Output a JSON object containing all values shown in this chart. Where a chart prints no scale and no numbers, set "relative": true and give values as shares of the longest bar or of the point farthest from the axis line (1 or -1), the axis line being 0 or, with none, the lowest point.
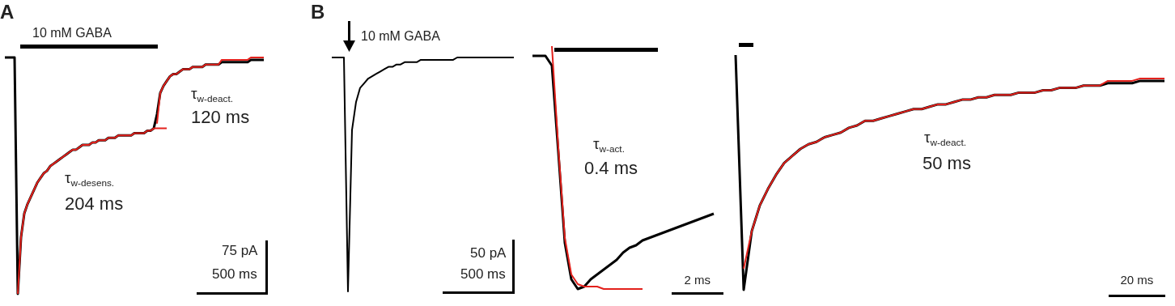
{
  "chart_data": [
    {
      "type": "line",
      "title": "A",
      "relative": true,
      "marker": "none",
      "tick_labels": false,
      "annotations": [
        "10 mM GABA",
        "τ$_{w-deact.}$",
        "120 ms",
        "τ$_{w-desens.}$",
        "204 ms",
        "75 pA",
        "500 ms"
      ],
      "categories": [
        null,
        null,
        null,
        null,
        null,
        null,
        null,
        null,
        null,
        null,
        null,
        null,
        null,
        null,
        null,
        null,
        null,
        null,
        null,
        null,
        null,
        null,
        null,
        null,
        null,
        null,
        null,
        null,
        null,
        null,
        null,
        null,
        null,
        null,
        null,
        null,
        null,
        null,
        null,
        null,
        null,
        null,
        null,
        null,
        null,
        null,
        null,
        null,
        null,
        null,
        null,
        null,
        null,
        null,
        null,
        null,
        null,
        null,
        null,
        null,
        null,
        null,
        null,
        null,
        null,
        null,
        null,
        null,
        null,
        null,
        null,
        null,
        null,
        null,
        null,
        null,
        null,
        null,
        null,
        null,
        null
      ],
      "series": [
        {
          "color": "#000000",
          "values": [
            1,
            1,
            1,
            1,
            0,
            0.24,
            0.34,
            0.38,
            0.41,
            0.44,
            0.47,
            0.49,
            0.51,
            0.52,
            0.54,
            0.55,
            0.56,
            0.57,
            0.58,
            0.59,
            0.6,
            0.61,
            0.61,
            0.62,
            0.63,
            0.63,
            0.63,
            0.64,
            0.64,
            0.65,
            0.65,
            0.65,
            0.66,
            0.66,
            0.66,
            0.67,
            0.67,
            0.67,
            0.67,
            0.67,
            0.68,
            0.68,
            0.68,
            0.68,
            0.69,
            0.69,
            0.7,
            0.76,
            0.85,
            0.88,
            0.9,
            0.92,
            0.93,
            0.93,
            0.94,
            0.95,
            0.95,
            0.95,
            0.96,
            0.96,
            0.96,
            0.96,
            0.97,
            0.97,
            0.97,
            0.97,
            0.97,
            0.98,
            0.98,
            0.98,
            0.98,
            0.98,
            0.98,
            0.98,
            0.98,
            0.98,
            0.99,
            0.99,
            0.99,
            0.99,
            0.99
          ]
        },
        {
          "color": "#e3211c",
          "values": [
            null,
            null,
            null,
            null,
            0,
            0.24,
            0.34,
            0.38,
            0.41,
            0.44,
            0.47,
            0.49,
            0.51,
            0.52,
            0.54,
            0.55,
            0.56,
            0.57,
            0.58,
            0.59,
            0.6,
            0.61,
            0.61,
            0.62,
            0.63,
            0.63,
            0.63,
            0.64,
            0.64,
            0.65,
            0.65,
            0.65,
            0.66,
            0.66,
            0.66,
            0.67,
            0.67,
            0.67,
            0.67,
            0.67,
            0.68,
            0.68,
            0.68,
            0.68,
            0.69,
            0.69,
            0.7,
            0.7,
            0.7,
            0.7,
            0.7,
            null,
            null,
            null,
            null,
            null,
            null,
            null,
            null,
            null,
            null,
            null,
            null,
            null,
            null,
            null,
            null,
            null,
            null,
            null,
            null,
            null,
            null,
            null,
            null,
            null,
            null,
            null,
            null,
            null,
            null
          ]
        },
        {
          "color": "#e3211c",
          "values": [
            null,
            null,
            null,
            null,
            null,
            null,
            null,
            null,
            null,
            null,
            null,
            null,
            null,
            null,
            null,
            null,
            null,
            null,
            null,
            null,
            null,
            null,
            null,
            null,
            null,
            null,
            null,
            null,
            null,
            null,
            null,
            null,
            null,
            null,
            null,
            null,
            null,
            null,
            null,
            null,
            null,
            null,
            null,
            null,
            null,
            null,
            null,
            0.72,
            0.85,
            0.88,
            0.9,
            0.92,
            0.93,
            0.93,
            0.94,
            0.95,
            0.95,
            0.95,
            0.96,
            0.96,
            0.96,
            0.96,
            0.97,
            0.97,
            0.97,
            0.97,
            0.97,
            0.99,
            0.99,
            0.99,
            0.99,
            0.99,
            0.99,
            0.99,
            0.99,
            0.99,
            1,
            1,
            1,
            1,
            1
          ]
        }
      ]
    },
    {
      "type": "line",
      "title": "B",
      "relative": true,
      "marker": "none",
      "tick_labels": false,
      "annotations": [
        "10 mM GABA",
        "50 pA",
        "500 ms"
      ],
      "categories": [
        null,
        null,
        null,
        null,
        null,
        null,
        null,
        null,
        null,
        null,
        null,
        null,
        null,
        null,
        null,
        null,
        null,
        null,
        null,
        null,
        null,
        null,
        null,
        null,
        null,
        null,
        null,
        null,
        null,
        null,
        null,
        null,
        null,
        null,
        null,
        null,
        null,
        null,
        null,
        null,
        null,
        null,
        null,
        null,
        null,
        null
      ],
      "series": [
        {
          "color": "#000000",
          "values": [
            1,
            1,
            1,
            1,
            0,
            0.69,
            0.81,
            0.87,
            0.89,
            0.91,
            0.92,
            0.93,
            0.94,
            0.95,
            0.96,
            0.96,
            0.97,
            0.97,
            0.98,
            0.98,
            0.98,
            0.98,
            0.99,
            0.99,
            0.99,
            0.99,
            0.99,
            0.99,
            0.99,
            0.99,
            0.99,
            1,
            1,
            1,
            1,
            1,
            1,
            1,
            1,
            1,
            1,
            1,
            1,
            1,
            1,
            1
          ]
        }
      ]
    },
    {
      "type": "line",
      "relative": true,
      "marker": "none",
      "tick_labels": false,
      "annotations": [
        "τ$_{w-act.}$",
        "0.4 ms",
        "2 ms"
      ],
      "categories": [
        null,
        null,
        null,
        null,
        null,
        null,
        null,
        null,
        null,
        null,
        null,
        null,
        null,
        null,
        null,
        null,
        null,
        null,
        null,
        null,
        null,
        null,
        null,
        null,
        null,
        null,
        null,
        null,
        null
      ],
      "series": [
        {
          "color": "#000000",
          "values": [
            0.96,
            0.96,
            0.96,
            0.92,
            0.56,
            0.19,
            0.04,
            0,
            0.01,
            0.04,
            0.06,
            0.08,
            0.1,
            0.12,
            0.15,
            0.17,
            0.18,
            0.2,
            0.21,
            0.22,
            0.23,
            0.24,
            0.25,
            0.26,
            0.27,
            0.28,
            0.29,
            0.3,
            0.31
          ]
        },
        {
          "color": "#e3211c",
          "values": [
            null,
            null,
            null,
            1,
            0.58,
            0.21,
            0.06,
            0.02,
            0.01,
            0.01,
            0.01,
            0,
            0,
            0,
            0,
            0,
            0,
            0,
            null,
            null,
            null,
            null,
            null,
            null,
            null,
            null,
            null,
            null,
            null
          ]
        }
      ]
    },
    {
      "type": "line",
      "relative": true,
      "marker": "none",
      "tick_labels": false,
      "annotations": [
        "τ$_{w-deact.}$",
        "50 ms",
        "20 ms"
      ],
      "categories": [
        null,
        null,
        null,
        null,
        null,
        null,
        null,
        null,
        null,
        null,
        null,
        null,
        null,
        null,
        null,
        null,
        null,
        null,
        null,
        null,
        null,
        null,
        null,
        null,
        null,
        null,
        null,
        null,
        null,
        null,
        null,
        null,
        null,
        null,
        null,
        null,
        null,
        null,
        null,
        null,
        null,
        null,
        null,
        null,
        null,
        null,
        null,
        null,
        null,
        null,
        null,
        null,
        null,
        null
      ],
      "series": [
        {
          "color": "#000000",
          "values": [
            1,
            0,
            0.25,
            0.36,
            0.43,
            0.49,
            0.54,
            0.57,
            0.6,
            0.62,
            0.63,
            0.65,
            0.66,
            0.67,
            0.69,
            0.7,
            0.72,
            0.72,
            0.73,
            0.74,
            0.75,
            0.76,
            0.77,
            0.77,
            0.78,
            0.79,
            0.79,
            0.8,
            0.81,
            0.81,
            0.82,
            0.82,
            0.83,
            0.83,
            0.83,
            0.84,
            0.84,
            0.84,
            0.85,
            0.85,
            0.86,
            0.86,
            0.86,
            0.87,
            0.87,
            0.87,
            0.88,
            0.88,
            0.88,
            0.88,
            0.89,
            0.89,
            0.89,
            0.89
          ]
        },
        {
          "color": "#e3211c",
          "values": [
            null,
            0.09,
            0.25,
            0.36,
            0.43,
            0.49,
            0.54,
            0.57,
            0.6,
            0.62,
            0.63,
            0.65,
            0.66,
            0.67,
            0.69,
            0.7,
            0.72,
            0.72,
            0.73,
            0.74,
            0.75,
            0.76,
            0.77,
            0.77,
            0.78,
            0.79,
            0.79,
            0.8,
            0.81,
            0.81,
            0.82,
            0.82,
            0.83,
            0.83,
            0.83,
            0.84,
            0.84,
            0.84,
            0.85,
            0.85,
            0.86,
            0.86,
            0.86,
            0.87,
            0.87,
            0.87,
            0.89,
            0.89,
            0.89,
            0.89,
            0.9,
            0.9,
            0.9,
            0.9
          ]
        }
      ]
    }
  ]
}
